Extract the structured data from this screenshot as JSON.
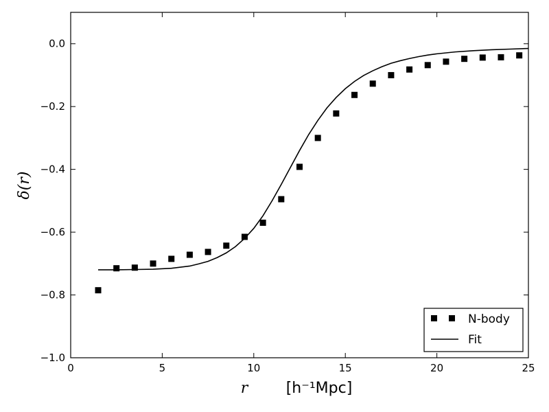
{
  "chart_data": {
    "type": "scatter",
    "title": "",
    "xlabel": "r",
    "xlabel_unit": "[h⁻¹Mpc]",
    "ylabel": "δ(r)",
    "xlim": [
      0,
      25
    ],
    "ylim": [
      -1.0,
      0.1
    ],
    "xticks": [
      0,
      5,
      10,
      15,
      20,
      25
    ],
    "xtick_labels": [
      "0",
      "5",
      "10",
      "15",
      "20",
      "25"
    ],
    "yticks": [
      -1.0,
      -0.8,
      -0.6,
      -0.4,
      -0.2,
      0.0
    ],
    "ytick_labels": [
      "−1.0",
      "−0.8",
      "−0.6",
      "−0.4",
      "−0.2",
      "0.0"
    ],
    "grid": false,
    "legend_position": "bottom-right",
    "series": [
      {
        "name": "N-body",
        "style": "markers",
        "marker": "square",
        "color": "#000000",
        "x": [
          1.5,
          2.5,
          3.5,
          4.5,
          5.5,
          6.5,
          7.5,
          8.5,
          9.5,
          10.5,
          11.5,
          12.5,
          13.5,
          14.5,
          15.5,
          16.5,
          17.5,
          18.5,
          19.5,
          20.5,
          21.5,
          22.5,
          23.5,
          24.5
        ],
        "y": [
          -0.785,
          -0.715,
          -0.713,
          -0.7,
          -0.685,
          -0.672,
          -0.663,
          -0.643,
          -0.615,
          -0.57,
          -0.495,
          -0.392,
          -0.3,
          -0.222,
          -0.163,
          -0.127,
          -0.1,
          -0.082,
          -0.068,
          -0.057,
          -0.048,
          -0.044,
          -0.043,
          -0.037
        ]
      },
      {
        "name": "Fit",
        "style": "line",
        "color": "#000000",
        "x": [
          1.5,
          2.5,
          3.5,
          4.5,
          5.5,
          6.5,
          7.0,
          7.5,
          8.0,
          8.5,
          9.0,
          9.5,
          10.0,
          10.5,
          11.0,
          11.5,
          12.0,
          12.5,
          13.0,
          13.5,
          14.0,
          14.5,
          15.0,
          15.5,
          16.0,
          16.5,
          17.0,
          17.5,
          18.0,
          18.5,
          19.0,
          19.5,
          20.0,
          21.0,
          22.0,
          23.0,
          24.0,
          25.0
        ],
        "y": [
          -0.72,
          -0.72,
          -0.719,
          -0.718,
          -0.715,
          -0.708,
          -0.701,
          -0.693,
          -0.681,
          -0.666,
          -0.646,
          -0.62,
          -0.588,
          -0.548,
          -0.5,
          -0.448,
          -0.394,
          -0.34,
          -0.289,
          -0.244,
          -0.204,
          -0.171,
          -0.143,
          -0.12,
          -0.101,
          -0.086,
          -0.073,
          -0.062,
          -0.054,
          -0.047,
          -0.041,
          -0.036,
          -0.032,
          -0.026,
          -0.022,
          -0.019,
          -0.017,
          -0.015
        ]
      }
    ]
  }
}
